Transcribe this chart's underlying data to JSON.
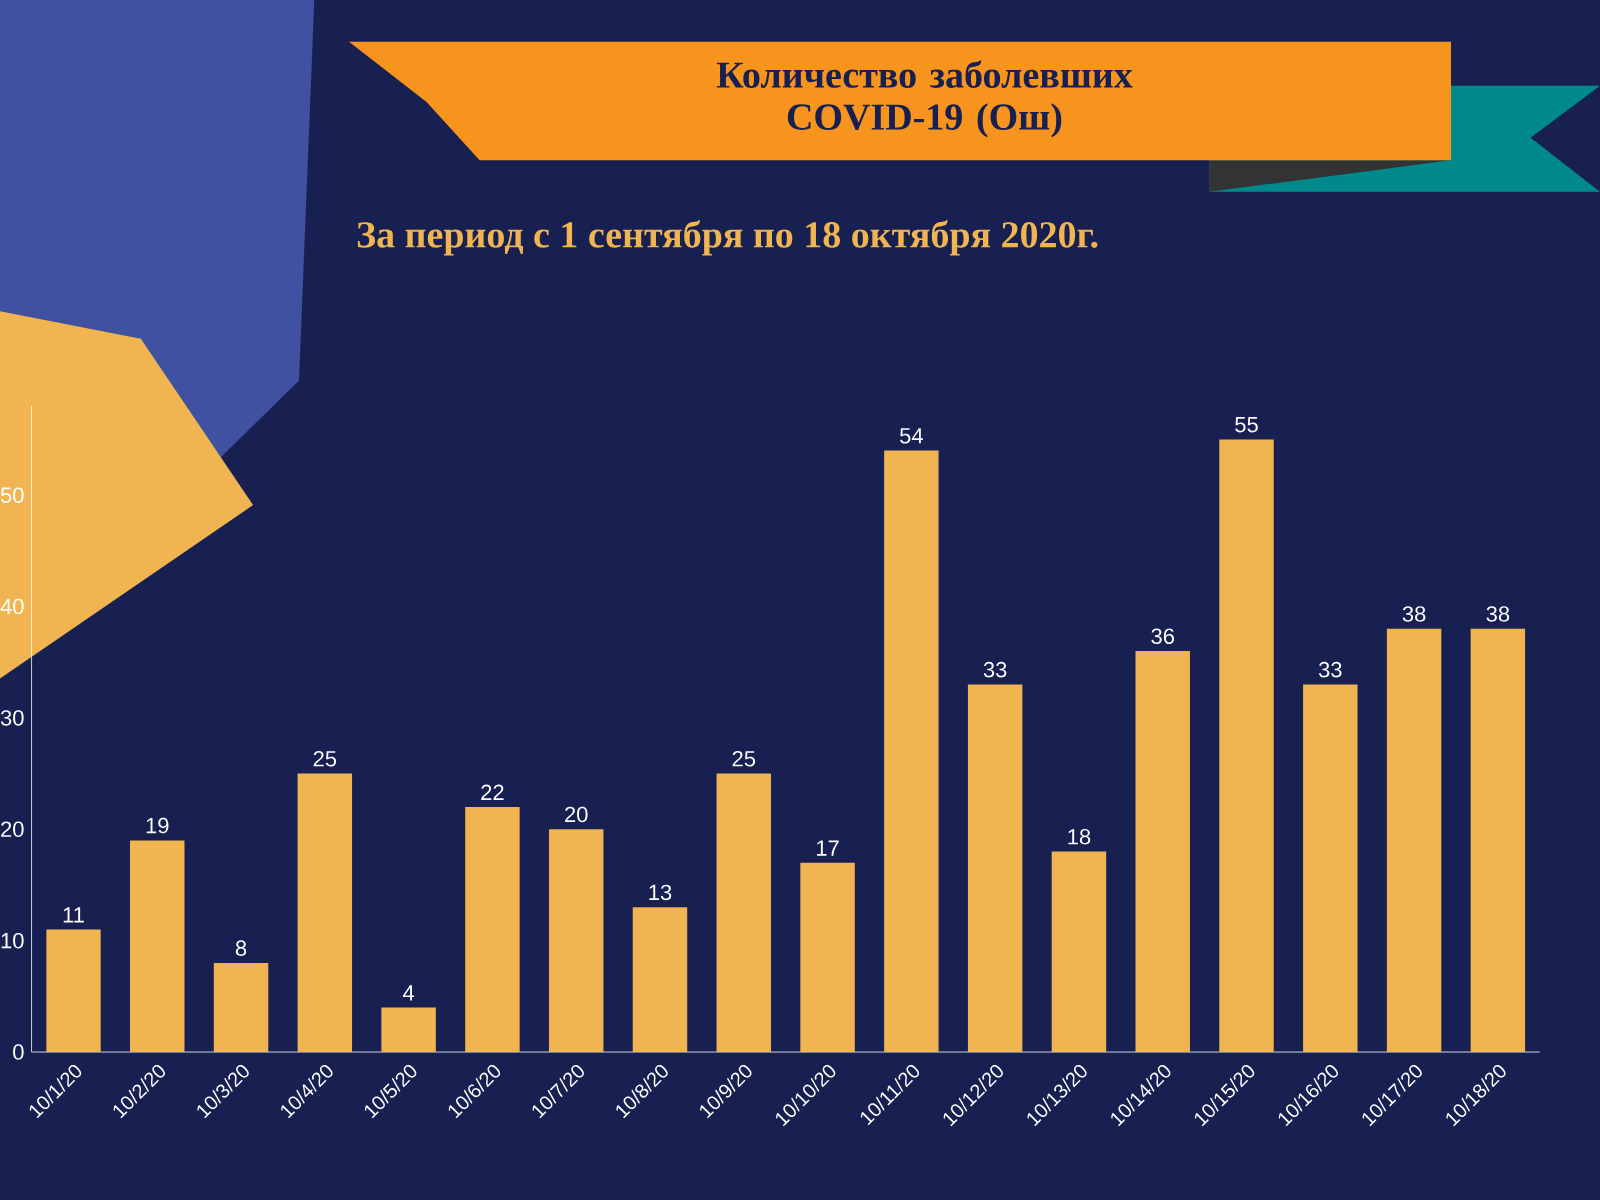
{
  "chart_data": {
    "type": "bar",
    "title": "Количество заболевших COVID-19 (Ош)",
    "subtitle": "За период с 1 сентября по 18 октября 2020г.",
    "categories": [
      "10/1/20",
      "10/2/20",
      "10/3/20",
      "10/4/20",
      "10/5/20",
      "10/6/20",
      "10/7/20",
      "10/8/20",
      "10/9/20",
      "10/10/20",
      "10/11/20",
      "10/12/20",
      "10/13/20",
      "10/14/20",
      "10/15/20",
      "10/16/20",
      "10/17/20",
      "10/18/20"
    ],
    "values": [
      11,
      19,
      8,
      25,
      4,
      22,
      20,
      13,
      25,
      17,
      54,
      33,
      18,
      36,
      55,
      33,
      38,
      38
    ],
    "color": "#f0b450",
    "ylim": [
      0,
      58
    ],
    "yticks": [
      0,
      10,
      20,
      30,
      40,
      50
    ],
    "data_labels": true
  }
}
